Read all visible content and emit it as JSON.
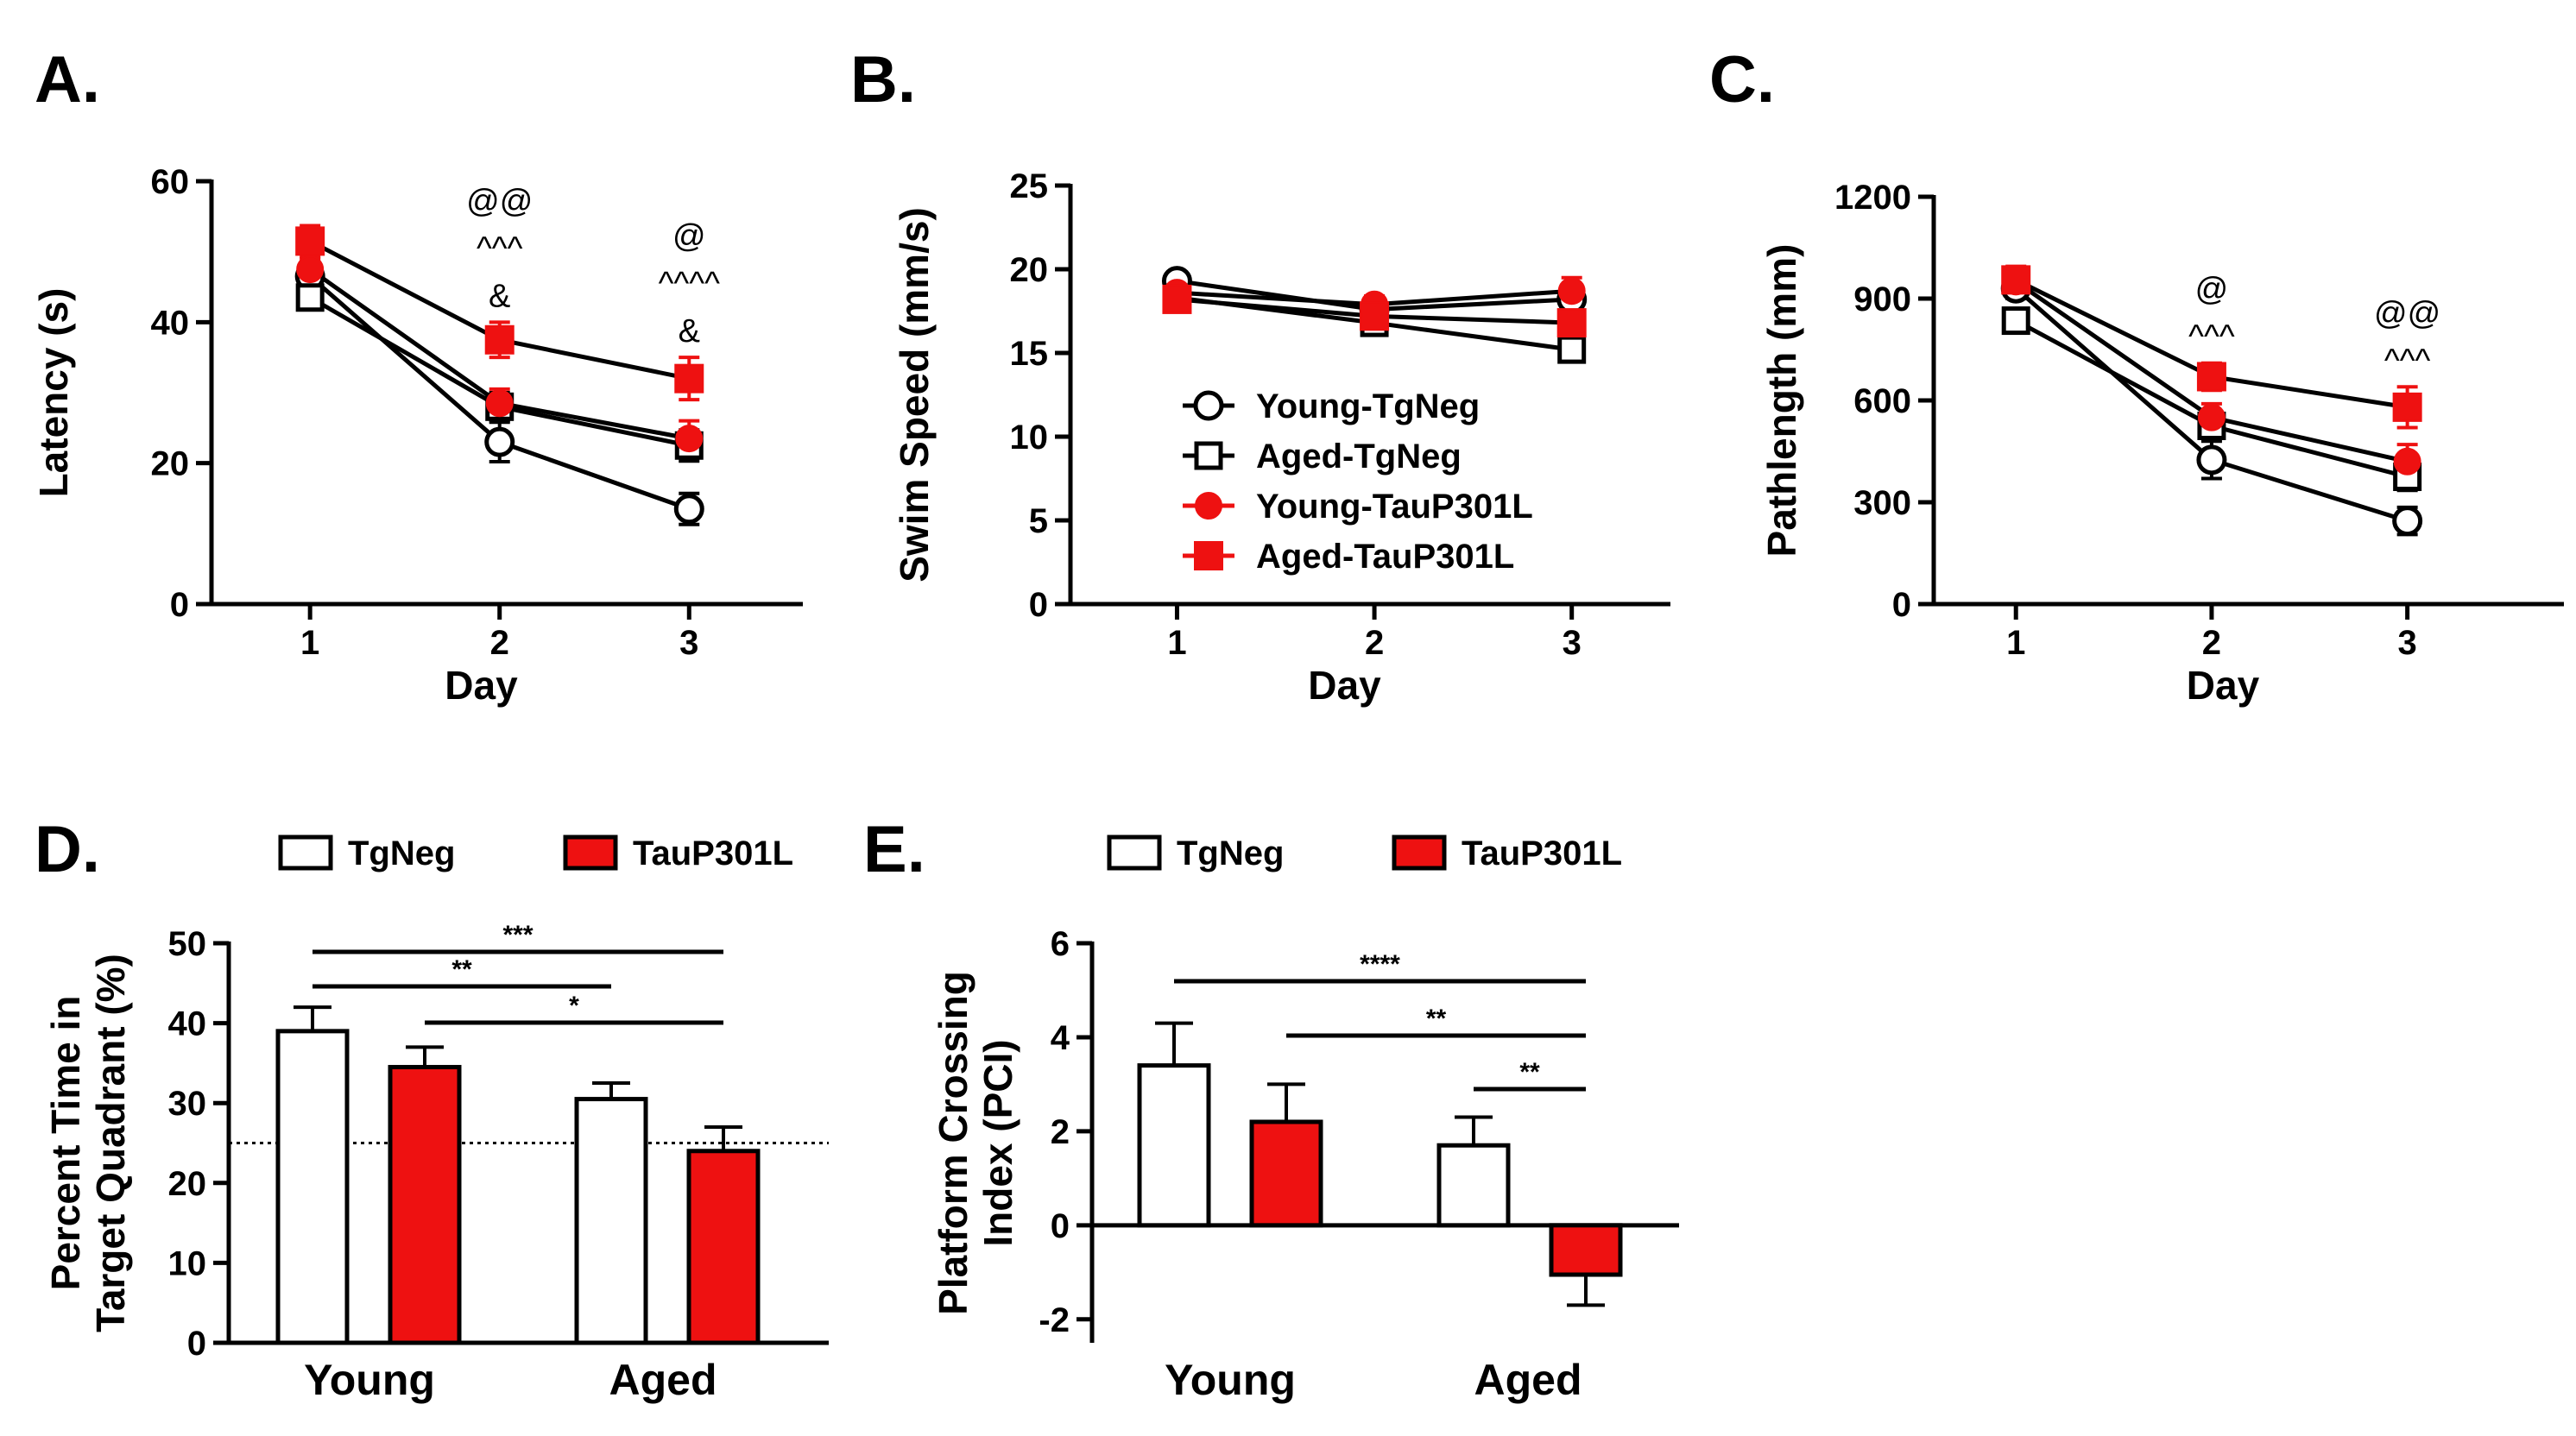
{
  "colors": {
    "tgneg": "#ffffff",
    "taup301l": "#ee1111",
    "axis": "#000000"
  },
  "chart_data": [
    {
      "id": "A",
      "panel_label": "A.",
      "type": "line",
      "xlabel": "Day",
      "ylabel": "Latency (s)",
      "x": [
        1,
        2,
        3
      ],
      "x_tick_labels": [
        "1",
        "2",
        "3"
      ],
      "ylim": [
        0,
        60
      ],
      "y_ticks": [
        0,
        20,
        40,
        60
      ],
      "y_tick_labels": [
        "0",
        "20",
        "40",
        "60"
      ],
      "series": [
        {
          "name": "Young-TgNeg",
          "marker": "open-circle",
          "values": [
            46.5,
            23,
            13.5
          ],
          "error": [
            1.5,
            2.8,
            2.2
          ]
        },
        {
          "name": "Aged-TgNeg",
          "marker": "open-square",
          "values": [
            43.5,
            28,
            22.5
          ],
          "error": [
            1.5,
            2.0,
            2.2
          ]
        },
        {
          "name": "Young-TauP301L",
          "marker": "filled-circle",
          "values": [
            47.5,
            28.5,
            23.5
          ],
          "error": [
            1.5,
            2.0,
            2.5
          ]
        },
        {
          "name": "Aged-TauP301L",
          "marker": "filled-square",
          "values": [
            51.5,
            37.5,
            32
          ],
          "error": [
            2.2,
            2.5,
            3.0
          ]
        }
      ],
      "annotations": [
        {
          "x": 2,
          "lines": [
            "@@",
            "^^^",
            "&"
          ]
        },
        {
          "x": 3,
          "lines": [
            "@",
            "^^^^",
            "&"
          ]
        }
      ]
    },
    {
      "id": "B",
      "panel_label": "B.",
      "type": "line",
      "xlabel": "Day",
      "ylabel": "Swim Speed (mm/s)",
      "x": [
        1,
        2,
        3
      ],
      "x_tick_labels": [
        "1",
        "2",
        "3"
      ],
      "ylim": [
        0,
        25
      ],
      "y_ticks": [
        0,
        5,
        10,
        15,
        20,
        25
      ],
      "y_tick_labels": [
        "0",
        "5",
        "10",
        "15",
        "20",
        "25"
      ],
      "series": [
        {
          "name": "Young-TgNeg",
          "marker": "open-circle",
          "values": [
            19.3,
            17.6,
            18.2
          ],
          "error": [
            0.5,
            0.5,
            0.6
          ]
        },
        {
          "name": "Aged-TgNeg",
          "marker": "open-square",
          "values": [
            18.3,
            16.8,
            15.2
          ],
          "error": [
            0.5,
            0.5,
            0.6
          ]
        },
        {
          "name": "Young-TauP301L",
          "marker": "filled-circle",
          "values": [
            18.6,
            17.9,
            18.7
          ],
          "error": [
            0.5,
            0.5,
            0.8
          ]
        },
        {
          "name": "Aged-TauP301L",
          "marker": "filled-square",
          "values": [
            18.2,
            17.2,
            16.8
          ],
          "error": [
            0.5,
            0.5,
            1.2
          ]
        }
      ],
      "legend": {
        "placement": "center-left",
        "entries": [
          "Young-TgNeg",
          "Aged-TgNeg",
          "Young-TauP301L",
          "Aged-TauP301L"
        ]
      }
    },
    {
      "id": "C",
      "panel_label": "C.",
      "type": "line",
      "xlabel": "Day",
      "ylabel": "Pathlength (mm)",
      "x": [
        1,
        2,
        3
      ],
      "x_tick_labels": [
        "1",
        "2",
        "3"
      ],
      "ylim": [
        0,
        1200
      ],
      "y_ticks": [
        0,
        300,
        600,
        900,
        1200
      ],
      "y_tick_labels": [
        "0",
        "300",
        "600",
        "900",
        "1200"
      ],
      "series": [
        {
          "name": "Young-TgNeg",
          "marker": "open-circle",
          "values": [
            930,
            425,
            245
          ],
          "error": [
            30,
            55,
            40
          ]
        },
        {
          "name": "Aged-TgNeg",
          "marker": "open-square",
          "values": [
            835,
            525,
            375
          ],
          "error": [
            30,
            35,
            40
          ]
        },
        {
          "name": "Young-TauP301L",
          "marker": "filled-circle",
          "values": [
            950,
            550,
            420
          ],
          "error": [
            30,
            40,
            50
          ]
        },
        {
          "name": "Aged-TauP301L",
          "marker": "filled-square",
          "values": [
            955,
            670,
            580
          ],
          "error": [
            40,
            40,
            60
          ]
        }
      ],
      "annotations": [
        {
          "x": 2,
          "lines": [
            "@",
            "^^^"
          ]
        },
        {
          "x": 3,
          "lines": [
            "@@",
            "^^^"
          ]
        }
      ]
    },
    {
      "id": "D",
      "panel_label": "D.",
      "type": "bar",
      "categories": [
        "Young",
        "Aged"
      ],
      "ylabel_lines": [
        "Percent Time in",
        "Target Quadrant (%)"
      ],
      "ylim": [
        0,
        50
      ],
      "y_ticks": [
        0,
        10,
        20,
        30,
        40,
        50
      ],
      "y_tick_labels": [
        "0",
        "10",
        "20",
        "30",
        "40",
        "50"
      ],
      "series": [
        {
          "name": "TgNeg",
          "values": [
            39,
            30.5
          ],
          "error": [
            3,
            2
          ]
        },
        {
          "name": "TauP301L",
          "values": [
            34.5,
            24
          ],
          "error": [
            2.5,
            3
          ]
        }
      ],
      "reference_line": 25,
      "legend": {
        "placement": "top",
        "entries": [
          "TgNeg",
          "TauP301L"
        ]
      },
      "significance": [
        {
          "from": [
            0,
            0
          ],
          "to": [
            1,
            1
          ],
          "label": "***"
        },
        {
          "from": [
            0,
            0
          ],
          "to": [
            1,
            0
          ],
          "label": "**"
        },
        {
          "from": [
            0,
            1
          ],
          "to": [
            1,
            1
          ],
          "label": "*"
        }
      ]
    },
    {
      "id": "E",
      "panel_label": "E.",
      "type": "bar",
      "categories": [
        "Young",
        "Aged"
      ],
      "ylabel_lines": [
        "Platform Crossing",
        "Index (PCI)"
      ],
      "ylim": [
        -2.5,
        6
      ],
      "y_ticks": [
        -2,
        0,
        2,
        4,
        6
      ],
      "y_tick_labels": [
        "-2",
        "0",
        "2",
        "4",
        "6"
      ],
      "series": [
        {
          "name": "TgNeg",
          "values": [
            3.4,
            1.7
          ],
          "error": [
            0.9,
            0.6
          ]
        },
        {
          "name": "TauP301L",
          "values": [
            2.2,
            -1.05
          ],
          "error": [
            0.8,
            0.65
          ]
        }
      ],
      "legend": {
        "placement": "top",
        "entries": [
          "TgNeg",
          "TauP301L"
        ]
      },
      "significance": [
        {
          "from": [
            0,
            0
          ],
          "to": [
            1,
            1
          ],
          "label": "****"
        },
        {
          "from": [
            0,
            1
          ],
          "to": [
            1,
            1
          ],
          "label": "**"
        },
        {
          "from": [
            1,
            0
          ],
          "to": [
            1,
            1
          ],
          "label": "**"
        }
      ]
    }
  ]
}
